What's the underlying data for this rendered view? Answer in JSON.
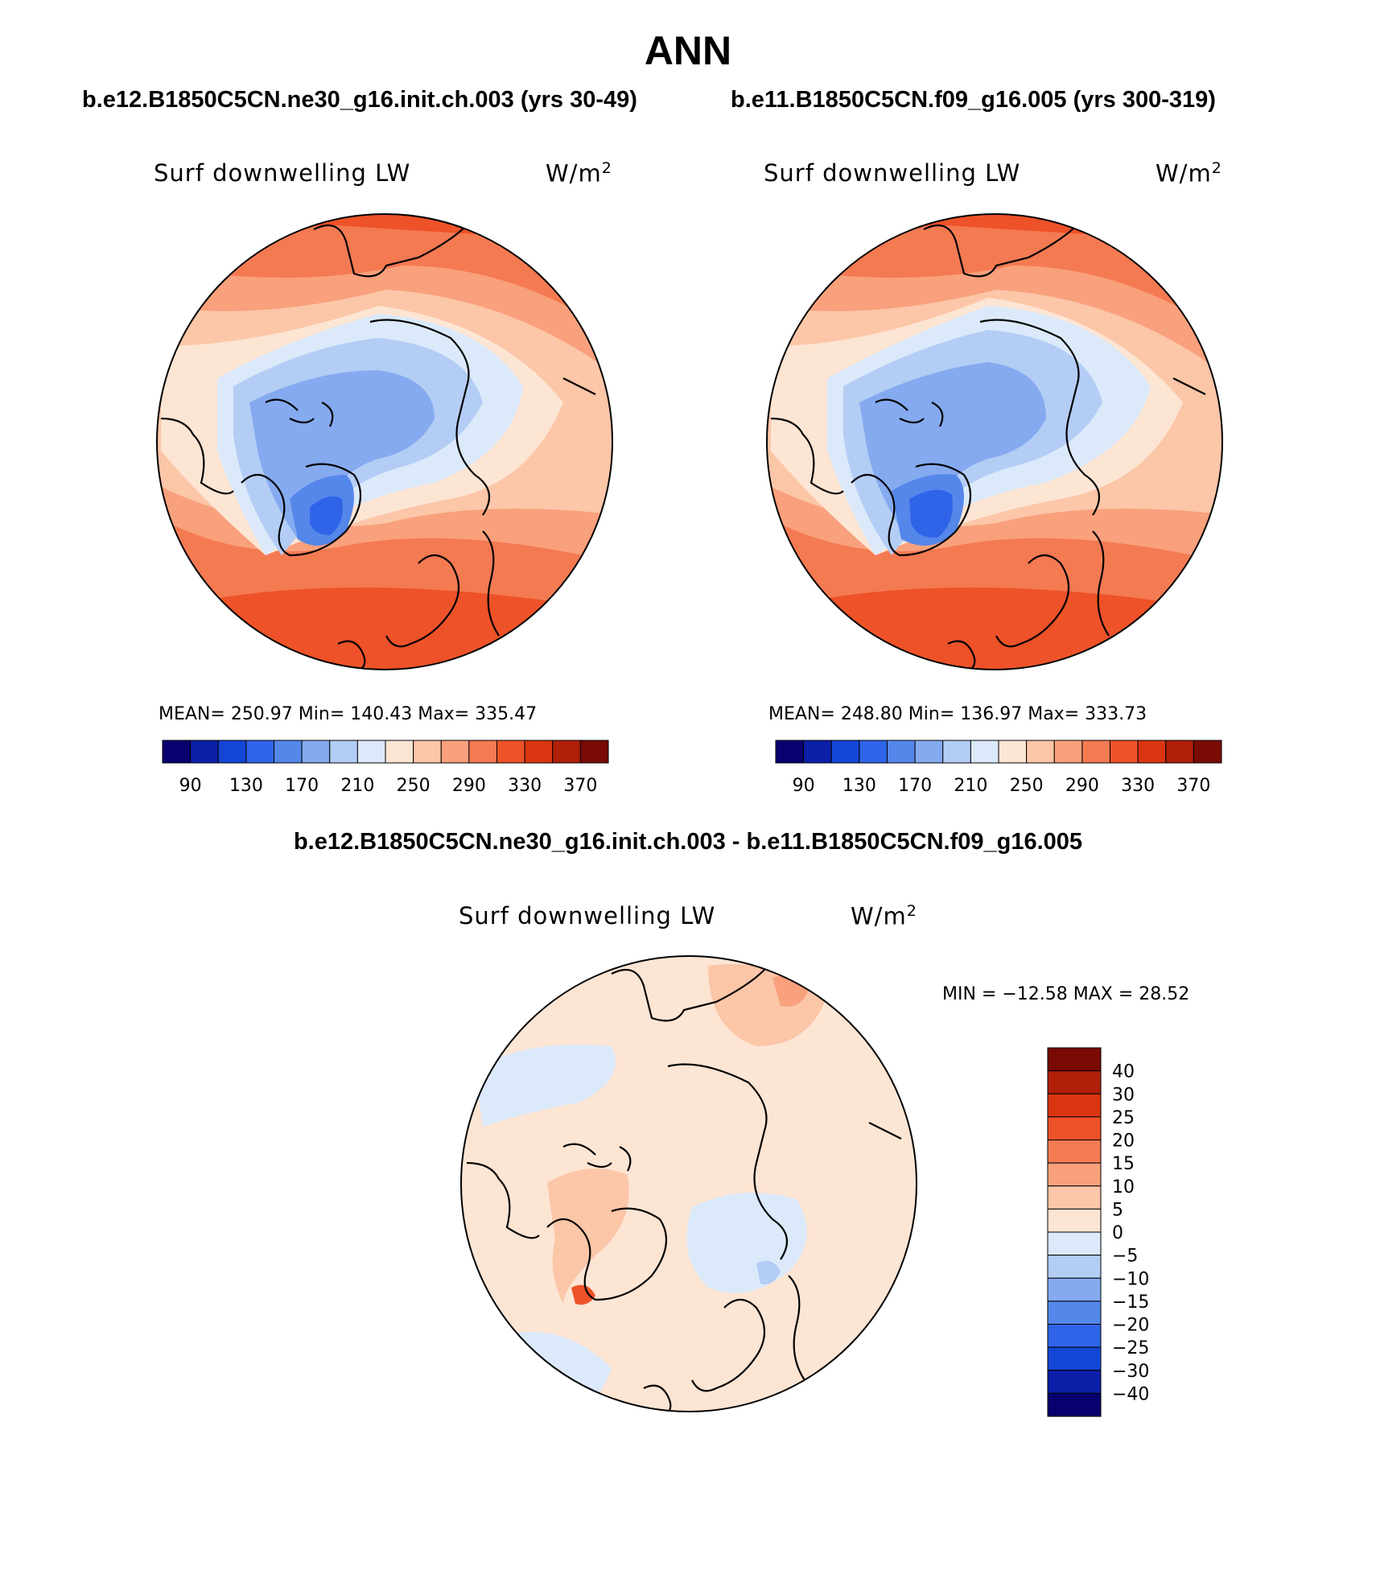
{
  "page": {
    "title": "ANN",
    "diff_title": "b.e12.B1850C5CN.ne30_g16.init.ch.003 - b.e11.B1850C5CN.f09_g16.005"
  },
  "panels": [
    {
      "case_title": "b.e12.B1850C5CN.ne30_g16.init.ch.003 (yrs 30-49)",
      "variable": "Surf downwelling LW",
      "units": "W/m",
      "units_exp": "2",
      "stats": "MEAN= 250.97   Min= 140.43   Max= 335.47"
    },
    {
      "case_title": "b.e11.B1850C5CN.f09_g16.005 (yrs 300-319)",
      "variable": "Surf downwelling LW",
      "units": "W/m",
      "units_exp": "2",
      "stats": "MEAN= 248.80   Min= 136.97   Max= 333.73"
    }
  ],
  "diff_panel": {
    "variable": "Surf downwelling LW",
    "units": "W/m",
    "units_exp": "2",
    "stats": "MIN = −12.58 MAX =   28.52"
  },
  "colorbar_abs": {
    "colors": [
      "#08006e",
      "#0c1fa8",
      "#1446d6",
      "#2f64e8",
      "#5587ea",
      "#85aaf0",
      "#b3cdf5",
      "#dbe9fa",
      "#fde5d4",
      "#fcc6a8",
      "#f9a07c",
      "#f47a52",
      "#ee5228",
      "#da3511",
      "#b01f08",
      "#7a0a04"
    ],
    "tick_labels": [
      "90",
      "130",
      "170",
      "210",
      "250",
      "290",
      "330",
      "370"
    ],
    "levels": [
      90,
      110,
      130,
      150,
      170,
      190,
      210,
      230,
      250,
      270,
      290,
      310,
      330,
      350,
      370
    ]
  },
  "colorbar_diff": {
    "colors": [
      "#08006e",
      "#0c1fa8",
      "#1446d6",
      "#2f64e8",
      "#5587ea",
      "#85aaf0",
      "#b3cdf5",
      "#dbe9fa",
      "#fde5d4",
      "#fcc6a8",
      "#f9a07c",
      "#f47a52",
      "#ee5228",
      "#da3511",
      "#b01f08",
      "#7a0a04"
    ],
    "tick_labels": [
      "−40",
      "−30",
      "−25",
      "−20",
      "−15",
      "−10",
      "−5",
      "0",
      "5",
      "10",
      "15",
      "20",
      "25",
      "30",
      "40"
    ],
    "levels": [
      -40,
      -30,
      -25,
      -20,
      -15,
      -10,
      -5,
      0,
      5,
      10,
      15,
      20,
      25,
      30,
      40
    ]
  }
}
